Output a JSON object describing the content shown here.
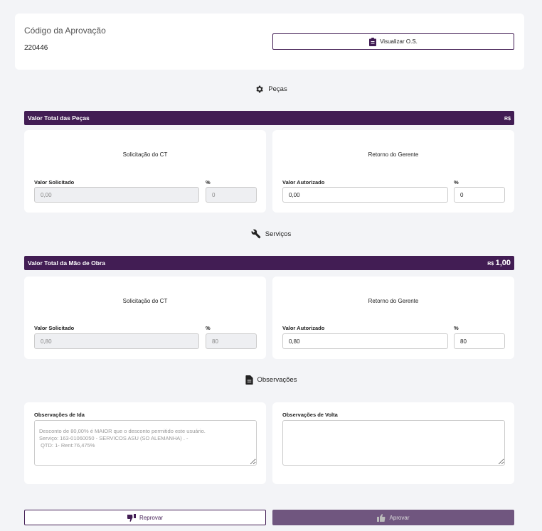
{
  "header": {
    "code_label": "Código da Aprovação",
    "code_value": "220446",
    "view_os_label": "Visualizar O.S."
  },
  "colors": {
    "primary": "#421d54",
    "approve": "#70567f",
    "background": "#f3f4f7"
  },
  "pecas": {
    "section_title": "Peças",
    "bar_title": "Valor Total das Peças",
    "bar_currency": "R$",
    "bar_value": "",
    "left": {
      "title": "Solicitação do CT",
      "value_label": "Valor Solicitado",
      "value": "0,00",
      "pct_label": "%",
      "pct": "0"
    },
    "right": {
      "title": "Retorno do Gerente",
      "value_label": "Valor Autorizado",
      "value": "0,00",
      "pct_label": "%",
      "pct": "0"
    }
  },
  "servicos": {
    "section_title": "Serviços",
    "bar_title": "Valor Total da Mão de Obra",
    "bar_currency": "R$",
    "bar_value": "1,00",
    "left": {
      "title": "Solicitação do CT",
      "value_label": "Valor Solicitado",
      "value": "0,80",
      "pct_label": "%",
      "pct": "80"
    },
    "right": {
      "title": "Retorno do Gerente",
      "value_label": "Valor Autorizado",
      "value": "0,80",
      "pct_label": "%",
      "pct": "80"
    }
  },
  "observacoes": {
    "section_title": "Observações",
    "ida_label": "Observações de Ida",
    "ida_value": "Desconto de 80,00% é MAIOR que o desconto permitido este usuário.\nServiço: 163-01060050 - SERVICOS ASU (SO ALEMANHA) . -\n QTD: 1- Rent:76,475%",
    "volta_label": "Observações de Volta",
    "volta_value": ""
  },
  "actions": {
    "reject_label": "Reprovar",
    "approve_label": "Aprovar"
  }
}
